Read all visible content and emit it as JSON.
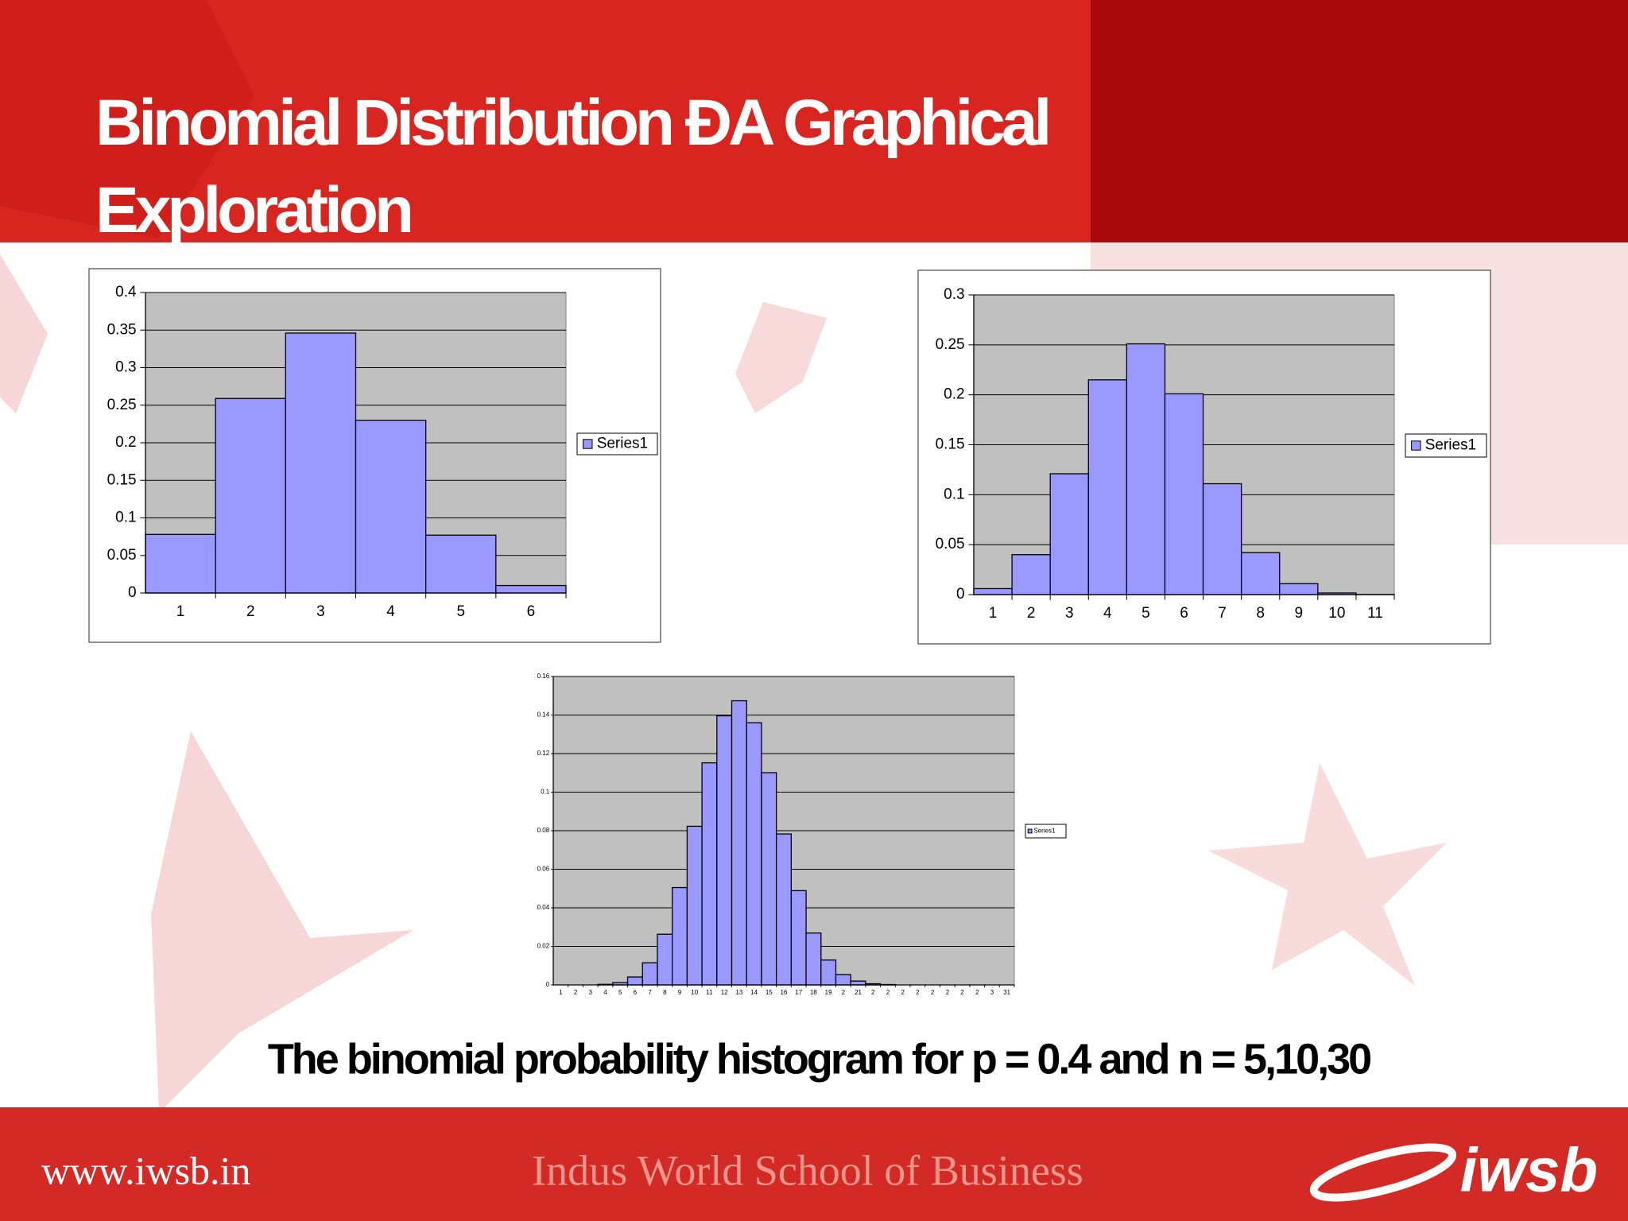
{
  "title": "Binomial Distribution ÐA Graphical Exploration",
  "caption": "The binomial probability histogram for p = 0.4 and n = 5,10,30",
  "footer": {
    "url": "www.iwsb.in",
    "school": "Indus World School of Business",
    "logo": "iwsb"
  },
  "chart_data": [
    {
      "type": "bar",
      "categories": [
        "1",
        "2",
        "3",
        "4",
        "5",
        "6"
      ],
      "series": [
        {
          "name": "Series1",
          "color": "#9999ff",
          "values": [
            0.078,
            0.259,
            0.346,
            0.23,
            0.077,
            0.01
          ]
        }
      ],
      "ylim": [
        0,
        0.4
      ],
      "yticks": [
        0,
        0.05,
        0.1,
        0.15,
        0.2,
        0.25,
        0.3,
        0.35,
        0.4
      ],
      "grid": true,
      "legend": "right"
    },
    {
      "type": "bar",
      "categories": [
        "1",
        "2",
        "3",
        "4",
        "5",
        "6",
        "7",
        "8",
        "9",
        "10",
        "11"
      ],
      "series": [
        {
          "name": "Series1",
          "color": "#9999ff",
          "values": [
            0.006,
            0.04,
            0.121,
            0.215,
            0.251,
            0.201,
            0.111,
            0.042,
            0.011,
            0.0016,
            0.0001
          ]
        }
      ],
      "ylim": [
        0,
        0.3
      ],
      "yticks": [
        0,
        0.05,
        0.1,
        0.15,
        0.2,
        0.25,
        0.3
      ],
      "grid": true,
      "legend": "right"
    },
    {
      "type": "bar",
      "categories": [
        "1",
        "2",
        "3",
        "4",
        "5",
        "6",
        "7",
        "8",
        "9",
        "10",
        "11",
        "12",
        "13",
        "14",
        "15",
        "16",
        "17",
        "18",
        "19",
        "2",
        "21",
        "2",
        "2",
        "2",
        "2",
        "2",
        "2",
        "2",
        "2",
        "3",
        "31"
      ],
      "series": [
        {
          "name": "Series1",
          "color": "#9999ff",
          "values": [
            0,
            0,
            0,
            0.0003,
            0.0012,
            0.0041,
            0.0115,
            0.0263,
            0.0505,
            0.0823,
            0.1152,
            0.1396,
            0.1474,
            0.136,
            0.1101,
            0.0783,
            0.0489,
            0.0269,
            0.0129,
            0.0054,
            0.002,
            0.0006,
            0.0002,
            0,
            0,
            0,
            0,
            0,
            0,
            0,
            0
          ]
        }
      ],
      "ylim": [
        0,
        0.16
      ],
      "yticks": [
        0,
        0.02,
        0.04,
        0.06,
        0.08,
        0.1,
        0.12,
        0.14,
        0.16
      ],
      "grid": true,
      "legend": "right"
    }
  ]
}
